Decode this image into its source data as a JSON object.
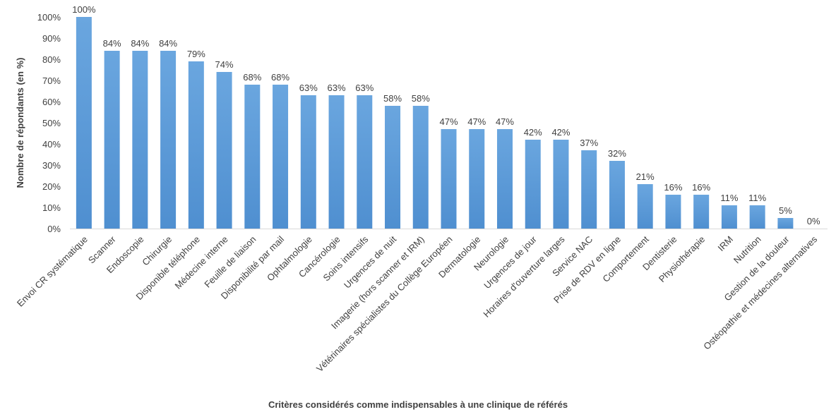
{
  "chart_data": {
    "type": "bar",
    "xlabel": "Critères considérés comme indispensables à une clinique de référés",
    "ylabel": "Nombre de répondants (en %)",
    "ylim": [
      0,
      100
    ],
    "ytick_step": 10,
    "grid": false,
    "bar_color": "#5b9bd5",
    "categories": [
      "Envoi CR systématique",
      "Scanner",
      "Endoscopie",
      "Chirurgie",
      "Disponible téléphone",
      "Médecine interne",
      "Feuille de liaison",
      "Disponibilité par mail",
      "Ophtalmologie",
      "Cancérologie",
      "Soins intensifs",
      "Urgences de nuit",
      "Imagerie (hors scanner et IRM)",
      "Vétérinaires spécialistes du Collège Européen",
      "Dermatologie",
      "Neurologie",
      "Urgences de jour",
      "Horaires d'ouverture larges",
      "Service NAC",
      "Prise de RDV en ligne",
      "Comportement",
      "Dentisterie",
      "Physiothérapie",
      "IRM",
      "Nutrition",
      "Gestion de la douleur",
      "Ostéopathie et médecines alternatives"
    ],
    "values": [
      100,
      84,
      84,
      84,
      79,
      74,
      68,
      68,
      63,
      63,
      63,
      58,
      58,
      47,
      47,
      47,
      42,
      42,
      37,
      32,
      21,
      16,
      16,
      11,
      11,
      5,
      0
    ],
    "data_labels": [
      "100%",
      "84%",
      "84%",
      "84%",
      "79%",
      "74%",
      "68%",
      "68%",
      "63%",
      "63%",
      "63%",
      "58%",
      "58%",
      "47%",
      "47%",
      "47%",
      "42%",
      "42%",
      "37%",
      "32%",
      "21%",
      "16%",
      "16%",
      "11%",
      "11%",
      "5%",
      "0%"
    ],
    "ytick_labels": [
      "0%",
      "10%",
      "20%",
      "30%",
      "40%",
      "50%",
      "60%",
      "70%",
      "80%",
      "90%",
      "100%"
    ]
  }
}
